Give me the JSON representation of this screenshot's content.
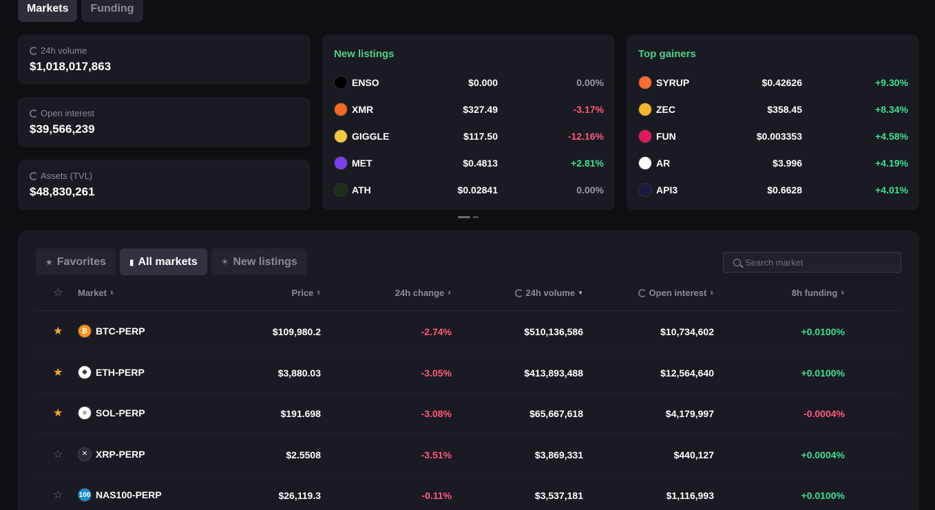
{
  "top_tabs": [
    {
      "label": "Markets"
    },
    {
      "label": "Funding"
    }
  ],
  "stats": [
    {
      "label": "24h volume",
      "value": "$1,018,017,863"
    },
    {
      "label": "Open interest",
      "value": "$39,566,239"
    },
    {
      "label": "Assets (TVL)",
      "value": "$48,830,261"
    }
  ],
  "new_listings": {
    "title": "New listings",
    "items": [
      {
        "symbol": "ENSO",
        "price": "$0.000",
        "change": "0.00%",
        "icon_color": "#000000",
        "icon_name": "enso-icon"
      },
      {
        "symbol": "XMR",
        "price": "$327.49",
        "change": "-3.17%",
        "icon_color": "#f26822",
        "icon_name": "monero-icon"
      },
      {
        "symbol": "GIGGLE",
        "price": "$117.50",
        "change": "-12.16%",
        "icon_color": "#f5c842",
        "icon_name": "giggle-icon"
      },
      {
        "symbol": "MET",
        "price": "$0.4813",
        "change": "+2.81%",
        "icon_color": "#7b3ff2",
        "icon_name": "met-icon"
      },
      {
        "symbol": "ATH",
        "price": "$0.02841",
        "change": "0.00%",
        "icon_color": "#1a2e1a",
        "icon_name": "ath-icon"
      }
    ]
  },
  "top_gainers": {
    "title": "Top gainers",
    "items": [
      {
        "symbol": "SYRUP",
        "price": "$0.42626",
        "change": "+9.30%",
        "icon_color": "#ff6b35",
        "icon_name": "syrup-icon"
      },
      {
        "symbol": "ZEC",
        "price": "$358.45",
        "change": "+8.34%",
        "icon_color": "#f4b728",
        "icon_name": "zcash-icon"
      },
      {
        "symbol": "FUN",
        "price": "$0.003353",
        "change": "+4.58%",
        "icon_color": "#e3175c",
        "icon_name": "fun-icon"
      },
      {
        "symbol": "AR",
        "price": "$3.996",
        "change": "+4.19%",
        "icon_color": "#ffffff",
        "icon_name": "arweave-icon"
      },
      {
        "symbol": "API3",
        "price": "$0.6628",
        "change": "+4.01%",
        "icon_color": "#1a1a40",
        "icon_name": "api3-icon"
      }
    ]
  },
  "filter_tabs": [
    {
      "label": "Favorites"
    },
    {
      "label": "All markets"
    },
    {
      "label": "New listings"
    }
  ],
  "search": {
    "placeholder": "Search market"
  },
  "table": {
    "columns": [
      "Market",
      "Price",
      "24h change",
      "24h volume",
      "Open interest",
      "8h funding"
    ],
    "rows": [
      {
        "market": "BTC-PERP",
        "price": "$109,980.2",
        "change": "-2.74%",
        "volume": "$510,136,586",
        "oi": "$10,734,602",
        "funding": "+0.0100%",
        "fav": true,
        "icon_color": "#f7931a",
        "icon_name": "bitcoin-icon",
        "glyph": "₿"
      },
      {
        "market": "ETH-PERP",
        "price": "$3,880.03",
        "change": "-3.05%",
        "volume": "$413,893,488",
        "oi": "$12,564,640",
        "funding": "+0.0100%",
        "fav": true,
        "icon_color": "#ffffff",
        "icon_name": "ethereum-icon",
        "glyph": "◆"
      },
      {
        "market": "SOL-PERP",
        "price": "$191.698",
        "change": "-3.08%",
        "volume": "$65,667,618",
        "oi": "$4,179,997",
        "funding": "-0.0004%",
        "fav": true,
        "icon_color": "#ffffff",
        "icon_name": "solana-icon",
        "glyph": "≡"
      },
      {
        "market": "XRP-PERP",
        "price": "$2.5508",
        "change": "-3.51%",
        "volume": "$3,869,331",
        "oi": "$440,127",
        "funding": "+0.0004%",
        "fav": false,
        "icon_color": "#2b2b33",
        "icon_name": "xrp-icon",
        "glyph": "✕"
      },
      {
        "market": "NAS100-PERP",
        "price": "$26,119.3",
        "change": "-0.11%",
        "volume": "$3,537,181",
        "oi": "$1,116,993",
        "funding": "+0.0100%",
        "fav": false,
        "icon_color": "#1a8fd1",
        "icon_name": "nas100-icon",
        "glyph": "100"
      }
    ]
  }
}
